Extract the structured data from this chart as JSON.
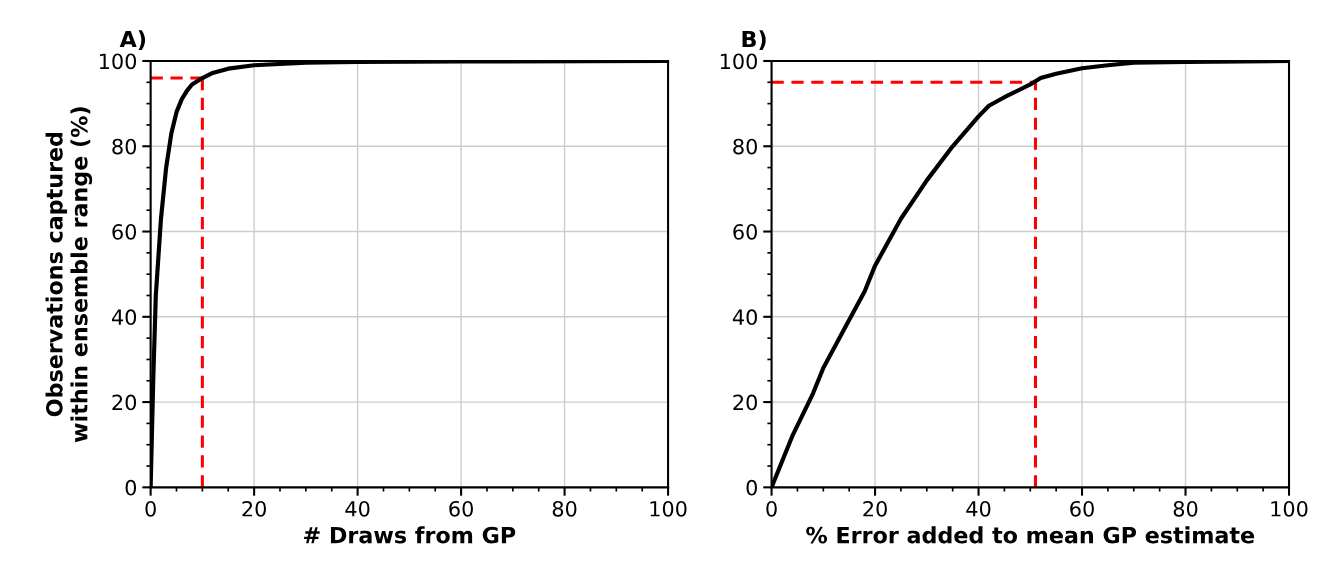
{
  "chart_data": [
    {
      "type": "line",
      "title": "A)",
      "xlabel": "# Draws from GP",
      "ylabel": "Observations captured\nwithin ensemble range (%)",
      "xlim": [
        0,
        100
      ],
      "ylim": [
        0,
        100
      ],
      "xticks": [
        0,
        20,
        40,
        60,
        80,
        100
      ],
      "yticks": [
        0,
        20,
        40,
        60,
        80,
        100
      ],
      "grid": true,
      "series": [
        {
          "color": "#000000",
          "x": [
            0,
            0.5,
            1,
            2,
            3,
            4,
            5,
            6,
            7,
            8,
            10,
            12,
            15,
            20,
            30,
            40,
            60,
            100
          ],
          "values": [
            0,
            25,
            45,
            63,
            75,
            83,
            88,
            91,
            93,
            94.5,
            96,
            97.2,
            98.2,
            99,
            99.6,
            99.8,
            99.9,
            100
          ]
        }
      ],
      "ref_lines": [
        {
          "axis": "x",
          "value": 10,
          "color": "#ff0000",
          "line_style": "dashed"
        },
        {
          "axis": "y",
          "value": 96,
          "color": "#ff0000",
          "line_style": "dashed"
        }
      ]
    },
    {
      "type": "line",
      "title": "B)",
      "xlabel": "% Error added to mean GP estimate",
      "xlim": [
        0,
        100
      ],
      "ylim": [
        0,
        100
      ],
      "xticks": [
        0,
        20,
        40,
        60,
        80,
        100
      ],
      "yticks": [
        0,
        20,
        40,
        60,
        80,
        100
      ],
      "grid": true,
      "series": [
        {
          "color": "#000000",
          "x": [
            0,
            2,
            4,
            6,
            8,
            10,
            14,
            18,
            20,
            25,
            30,
            35,
            40,
            42,
            45,
            50,
            52,
            55,
            60,
            65,
            70,
            80,
            100
          ],
          "values": [
            0,
            6,
            12,
            17,
            22,
            28,
            37,
            46,
            52,
            63,
            72,
            80,
            87,
            89.5,
            91.5,
            94.5,
            96,
            97,
            98.3,
            99,
            99.6,
            99.8,
            100
          ]
        }
      ],
      "ref_lines": [
        {
          "axis": "x",
          "value": 51,
          "color": "#ff0000",
          "line_style": "dashed"
        },
        {
          "axis": "y",
          "value": 95,
          "color": "#ff0000",
          "line_style": "dashed"
        }
      ]
    }
  ]
}
